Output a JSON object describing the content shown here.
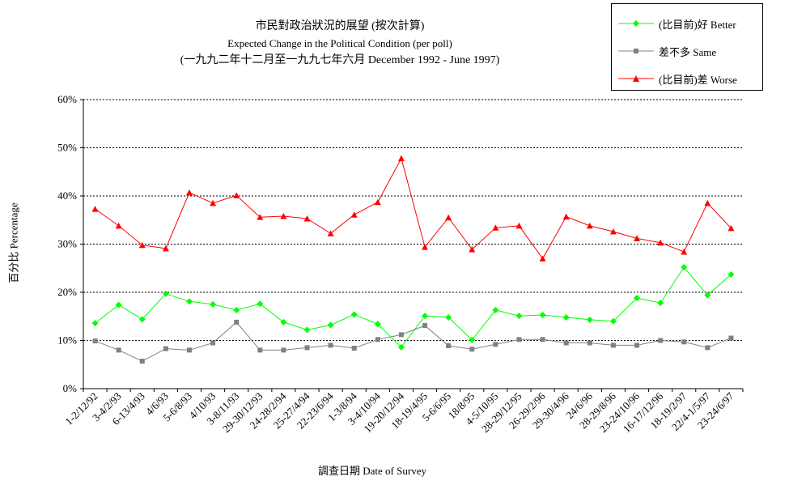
{
  "chart_data": {
    "type": "line",
    "title": "市民對政治狀況的展望 (按次計算)",
    "subtitle": "Expected Change in the Political Condition (per poll)",
    "subtitle2": "(一九九二年十二月至一九九七年六月 December 1992 - June 1997)",
    "xlabel": "調查日期 Date of Survey",
    "ylabel": "百分比 Percentage",
    "ylim": [
      0,
      60
    ],
    "yticks": [
      "0%",
      "10%",
      "20%",
      "30%",
      "40%",
      "50%",
      "60%"
    ],
    "grid": true,
    "legend_position": "top-right",
    "categories": [
      "1-2/12/92",
      "3-4/2/93",
      "6-13/4/93",
      "4/6/93",
      "5-6/8/93",
      "4/10/93",
      "3-8/11/93",
      "29-30/12/93",
      "24-28/2/94",
      "25-27/4/94",
      "22-23/6/94",
      "1-3/8/94",
      "3-4/10/94",
      "19-20/12/94",
      "18-19/4/95",
      "5-6/6/95",
      "18/8/95",
      "4-5/10/95",
      "28-29/12/95",
      "26-29/2/96",
      "29-30/4/96",
      "24/6/96",
      "28-29/8/96",
      "23-24/10/96",
      "16-17/12/96",
      "18-19/2/97",
      "22/4-1/5/97",
      "23-24/6/97"
    ],
    "series": [
      {
        "name": "(比目前)好 Better",
        "color": "#00ff00",
        "marker": "diamond",
        "values": [
          13.6,
          17.4,
          14.4,
          19.7,
          18.1,
          17.5,
          16.3,
          17.6,
          13.8,
          12.2,
          13.2,
          15.4,
          13.4,
          8.6,
          15.1,
          14.8,
          10.1,
          16.3,
          15.1,
          15.3,
          14.8,
          14.3,
          14.0,
          18.8,
          17.8,
          25.2,
          19.4,
          23.7
        ]
      },
      {
        "name": "差不多 Same",
        "color": "#808080",
        "marker": "square",
        "values": [
          9.9,
          8.0,
          5.7,
          8.3,
          8.0,
          9.5,
          13.8,
          8.0,
          8.0,
          8.5,
          9.0,
          8.4,
          10.2,
          11.2,
          13.1,
          8.9,
          8.2,
          9.2,
          10.2,
          10.2,
          9.5,
          9.5,
          9.0,
          9.0,
          10.0,
          9.7,
          8.5,
          10.5
        ]
      },
      {
        "name": "(比目前)差 Worse",
        "color": "#ff0000",
        "marker": "triangle",
        "values": [
          37.3,
          33.8,
          29.8,
          29.1,
          40.7,
          38.5,
          40.1,
          35.6,
          35.8,
          35.3,
          32.2,
          36.1,
          38.7,
          47.8,
          29.4,
          35.5,
          28.9,
          33.4,
          33.8,
          27.0,
          35.7,
          33.8,
          32.6,
          31.2,
          30.3,
          28.4,
          38.5,
          33.3
        ]
      }
    ]
  }
}
